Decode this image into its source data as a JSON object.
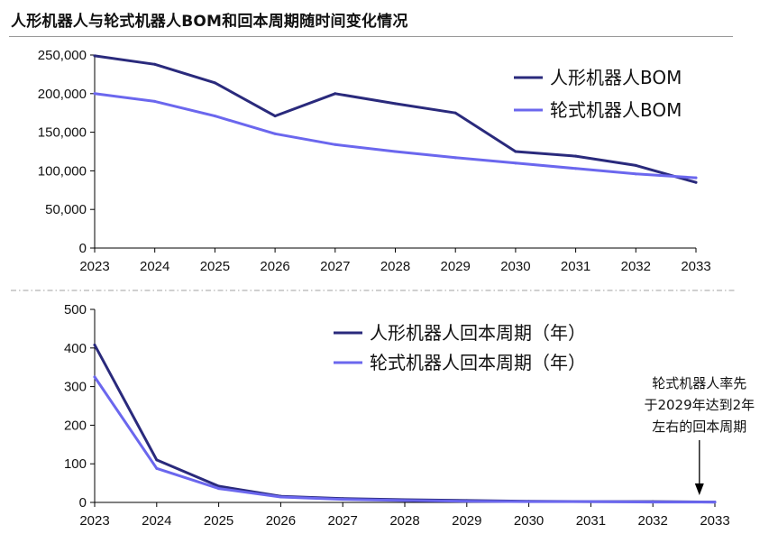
{
  "title": "人形机器人与轮式机器人BOM和回本周期随时间变化情况",
  "colors": {
    "humanoid": "#2a2a7c",
    "wheeled": "#6b67ee",
    "axis": "#000000",
    "separator": "#b5b5b5"
  },
  "chart_data": [
    {
      "type": "line",
      "title": "",
      "x": [
        2023,
        2024,
        2025,
        2026,
        2027,
        2028,
        2029,
        2030,
        2031,
        2032,
        2033
      ],
      "x_tick_labels": [
        "2023",
        "2024",
        "2025",
        "2026",
        "2027",
        "2028",
        "2029",
        "2030",
        "2031",
        "2032",
        "2033"
      ],
      "ylim": [
        0,
        250000
      ],
      "y_ticks": [
        0,
        50000,
        100000,
        150000,
        200000,
        250000
      ],
      "y_tick_labels": [
        "0",
        "50,000",
        "100,000",
        "150,000",
        "200,000",
        "250,000"
      ],
      "xlabel": "",
      "ylabel": "",
      "legend_position": "top-right",
      "series": [
        {
          "name": "人形机器人BOM",
          "color_key": "humanoid",
          "values": [
            249000,
            238000,
            214000,
            171000,
            200000,
            187000,
            175000,
            125000,
            119000,
            107000,
            85000
          ]
        },
        {
          "name": "轮式机器人BOM",
          "color_key": "wheeled",
          "values": [
            200000,
            190000,
            171000,
            148000,
            134000,
            125000,
            117000,
            110000,
            103000,
            96000,
            91000
          ]
        }
      ]
    },
    {
      "type": "line",
      "title": "",
      "x": [
        2023,
        2024,
        2025,
        2026,
        2027,
        2028,
        2029,
        2030,
        2031,
        2032,
        2033
      ],
      "x_tick_labels": [
        "2023",
        "2024",
        "2025",
        "2026",
        "2027",
        "2028",
        "2029",
        "2030",
        "2031",
        "2032",
        "2033"
      ],
      "ylim": [
        0,
        500
      ],
      "y_ticks": [
        0,
        100,
        200,
        300,
        400,
        500
      ],
      "y_tick_labels": [
        "0",
        "100",
        "200",
        "300",
        "400",
        "500"
      ],
      "xlabel": "",
      "ylabel": "",
      "legend_position": "top-right",
      "series": [
        {
          "name": "人形机器人回本周期（年）",
          "color_key": "humanoid",
          "values": [
            408,
            110,
            42,
            16,
            10,
            7,
            5,
            3,
            2,
            2,
            1
          ]
        },
        {
          "name": "轮式机器人回本周期（年）",
          "color_key": "wheeled",
          "values": [
            325,
            88,
            36,
            14,
            8,
            5,
            3,
            2,
            2,
            1,
            1
          ]
        }
      ],
      "annotation": {
        "lines": [
          "轮式机器人率先",
          "于2029年达到2年",
          "左右的回本周期"
        ],
        "arrow_target_x": 2032.75
      }
    }
  ]
}
